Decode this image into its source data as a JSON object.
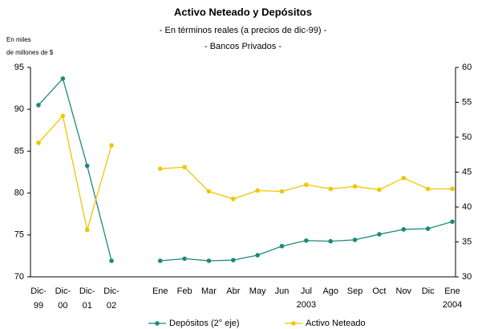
{
  "chart_data": {
    "type": "line",
    "title": "Activo Neteado y Depósitos",
    "subtitle": [
      "- En términos reales (a precios de dic-99) -",
      "- Bancos Privados -"
    ],
    "ylabel": [
      "En miles",
      "de millones de $"
    ],
    "categories": [
      "Dic-99",
      "Dic-00",
      "Dic-01",
      "Dic-02",
      null,
      "Ene",
      "Feb",
      "Mar",
      "Abr",
      "May",
      "Jun",
      "Jul",
      "Ago",
      "Sep",
      "Oct",
      "Nov",
      "Dic",
      "Ene"
    ],
    "category_years": [
      null,
      null,
      null,
      null,
      null,
      null,
      null,
      null,
      null,
      null,
      null,
      "2003",
      null,
      null,
      null,
      null,
      null,
      "2004"
    ],
    "series": [
      {
        "name": "Depósitos (2° eje)",
        "color": "#1b8a7a",
        "axis": "y2",
        "values": [
          54.6,
          58.4,
          45.9,
          32.3,
          null,
          32.3,
          32.6,
          32.3,
          32.4,
          33.1,
          34.4,
          35.2,
          35.1,
          35.3,
          36.1,
          36.8,
          36.9,
          37.9
        ]
      },
      {
        "name": "Activo Neteado",
        "color": "#f2c500",
        "values": [
          86.0,
          89.2,
          75.6,
          85.7,
          null,
          82.9,
          83.1,
          80.2,
          79.3,
          80.3,
          80.2,
          81.0,
          80.5,
          80.8,
          80.4,
          81.8,
          80.5,
          80.5
        ]
      }
    ],
    "ylim": [
      70,
      95
    ],
    "yticks": [
      70,
      75,
      80,
      85,
      90,
      95
    ],
    "y2lim": [
      30,
      60
    ],
    "y2ticks": [
      30,
      35,
      40,
      45,
      50,
      55,
      60
    ],
    "grid": false,
    "legend": "bottom"
  }
}
